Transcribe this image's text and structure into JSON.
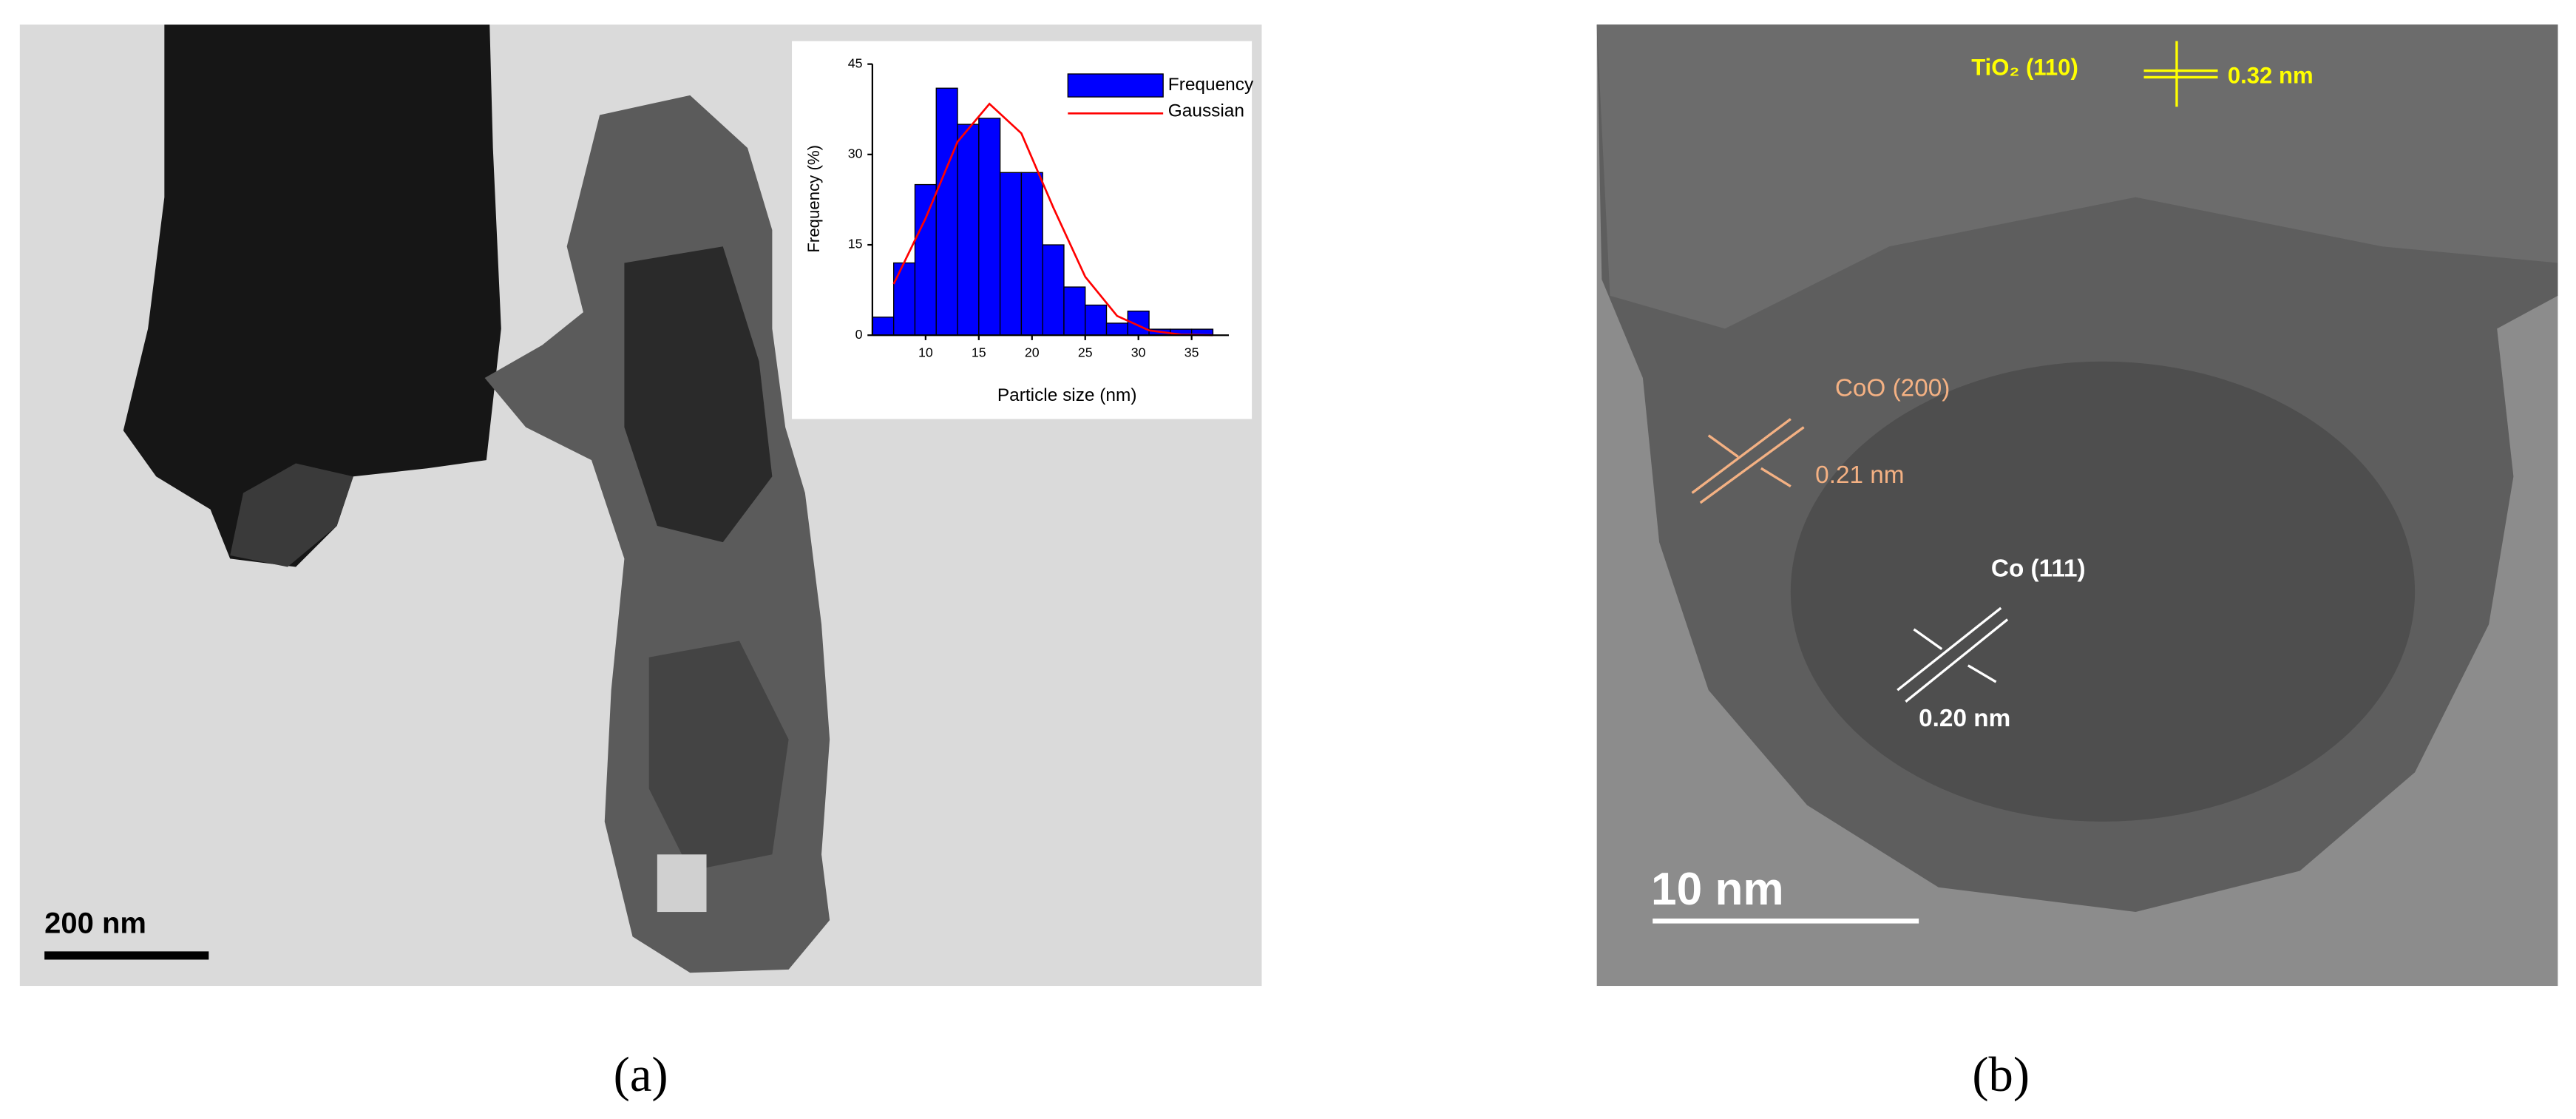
{
  "chart_data": {
    "type": "histogram",
    "xlabel": "Particle size (nm)",
    "ylabel": "Frequency (%)",
    "bins": [
      5,
      7,
      9,
      11,
      13,
      15,
      17,
      19,
      21,
      23,
      25,
      27,
      29,
      31,
      33,
      35,
      37
    ],
    "series": [
      {
        "name": "Frequency",
        "color": "#0000ff",
        "values": [
          3,
          12,
          25,
          41,
          35,
          36,
          27,
          27,
          15,
          8,
          5,
          2,
          4,
          1,
          1,
          1
        ]
      },
      {
        "name": "Gaussian",
        "color": "#ff0000",
        "type": "line",
        "x": [
          7,
          10,
          13,
          16,
          19,
          22,
          25,
          28,
          31,
          34,
          37
        ],
        "values": [
          8.5,
          19.4,
          32.1,
          38.4,
          33.5,
          21.2,
          9.7,
          3.2,
          0.8,
          0.1,
          0
        ]
      }
    ],
    "xlim": [
      5,
      38.5
    ],
    "ylim": [
      0,
      45
    ],
    "xticks": [
      10,
      15,
      20,
      25,
      30,
      35
    ],
    "yticks": [
      0,
      15,
      30,
      45
    ],
    "legend": "upper right"
  },
  "panels": [
    {
      "label": "(a)",
      "scale_bar": "200 nm"
    },
    {
      "label": "(b)",
      "scale_bar": "10 nm",
      "annotations": [
        "TiO₂ (110)",
        "0.32 nm",
        "CoO (200)",
        "0.21 nm",
        "Co (111)",
        "0.20 nm"
      ]
    }
  ]
}
